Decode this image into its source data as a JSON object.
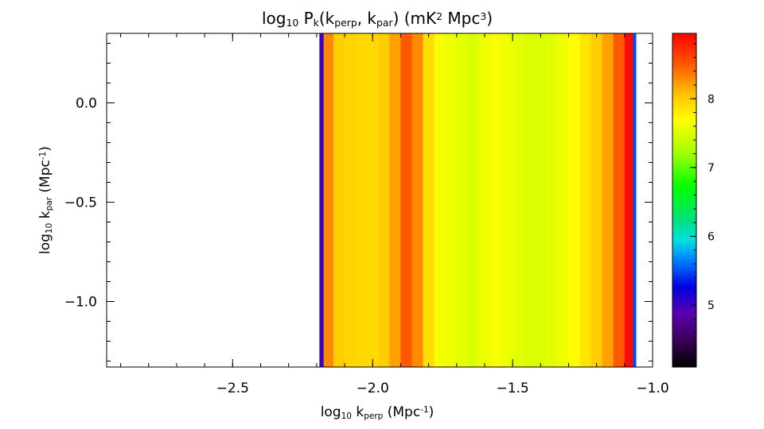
{
  "chart_data": {
    "type": "heatmap",
    "title_parts": [
      "log",
      "10",
      " P",
      "k",
      "(k",
      "perp",
      ", k",
      "par",
      ")  (mK",
      "2",
      " Mpc",
      "3",
      ")"
    ],
    "xlabel_parts": [
      "log",
      "10",
      " k",
      "perp",
      " (Mpc",
      "-1",
      ")"
    ],
    "ylabel_parts": [
      "log",
      "10",
      " k",
      "par",
      " (Mpc",
      "-1",
      ")"
    ],
    "xlim": [
      -2.95,
      -1.0
    ],
    "ylim": [
      -1.33,
      0.35
    ],
    "x_ticks": [
      -2.5,
      -2.0,
      -1.5,
      -1.0
    ],
    "x_tick_labels": [
      "−2.5",
      "−2.0",
      "−1.5",
      "−1.0"
    ],
    "y_ticks": [
      0.0,
      -0.5,
      -1.0
    ],
    "y_tick_labels": [
      "0.0",
      "−0.5",
      "−1.0"
    ],
    "data_x_range": [
      -2.19,
      -1.06
    ],
    "kperp_x": [
      -2.19,
      -2.16,
      -2.12,
      -2.08,
      -2.04,
      -2.0,
      -1.96,
      -1.92,
      -1.88,
      -1.84,
      -1.8,
      -1.76,
      -1.72,
      -1.68,
      -1.64,
      -1.6,
      -1.56,
      -1.52,
      -1.48,
      -1.44,
      -1.4,
      -1.36,
      -1.32,
      -1.28,
      -1.24,
      -1.2,
      -1.16,
      -1.12,
      -1.08,
      -1.06
    ],
    "log_power": [
      5.0,
      8.3,
      8.0,
      7.95,
      7.92,
      7.92,
      8.0,
      8.2,
      8.5,
      8.3,
      7.9,
      7.65,
      7.6,
      7.55,
      7.5,
      7.6,
      7.65,
      7.6,
      7.55,
      7.5,
      7.5,
      7.55,
      7.6,
      7.7,
      7.85,
      8.0,
      8.2,
      8.5,
      8.9,
      5.5
    ],
    "colorbar": {
      "range": [
        4.1,
        8.95
      ],
      "ticks": [
        5,
        6,
        7,
        8
      ],
      "tick_labels": [
        "5",
        "6",
        "7",
        "8"
      ],
      "colormap": "rainbow (black-purple-blue-cyan-green-yellow-orange-red)"
    }
  }
}
